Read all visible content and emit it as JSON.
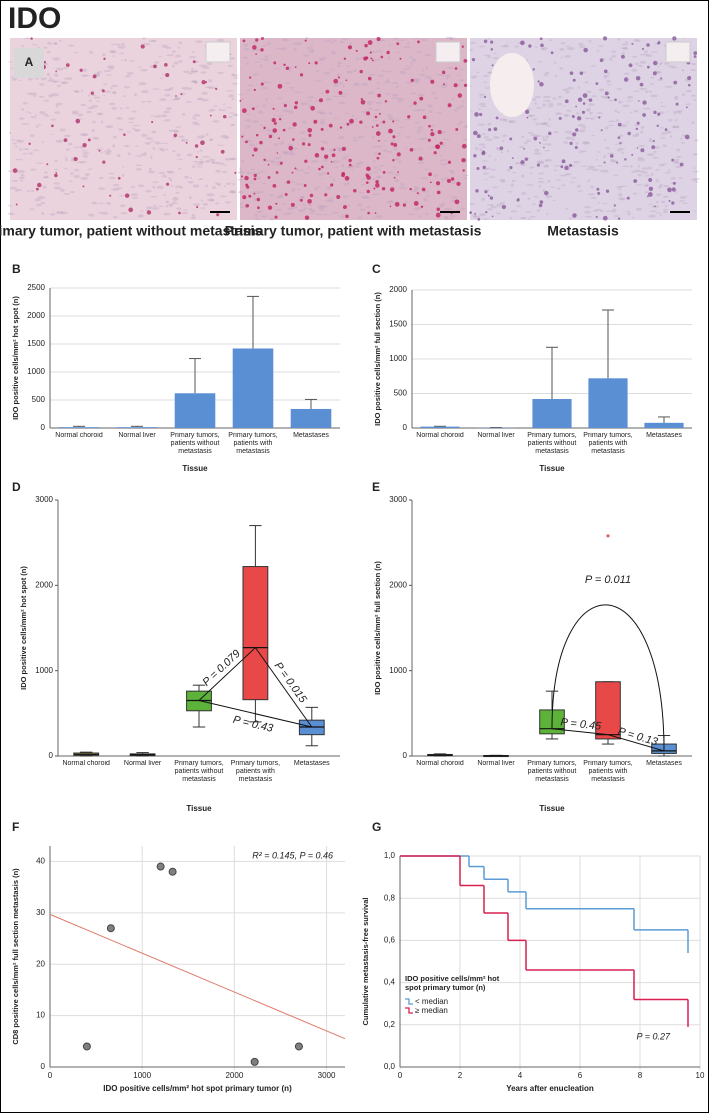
{
  "title": "IDO",
  "panel_a": {
    "label": "A",
    "captions": [
      "Primary tumor, patient without metastasis",
      "Primary tumor, patient with metastasis",
      "Metastasis"
    ]
  },
  "chart_data": [
    {
      "panel": "B",
      "type": "bar",
      "y_label": "IDO positive cells/mm² hot spot (n)",
      "x_label": "Tissue",
      "categories": [
        "Normal choroid",
        "Normal liver",
        "Primary tumors, patients without metastasis",
        "Primary tumors, patients with metastasis",
        "Metastases"
      ],
      "values": [
        15,
        15,
        620,
        1420,
        340
      ],
      "errors": [
        15,
        15,
        620,
        930,
        170
      ],
      "color": "#5b8fd4",
      "ylim": [
        0,
        2500
      ],
      "yticks": [
        0,
        500,
        1000,
        1500,
        2000,
        2500
      ],
      "grid": true
    },
    {
      "panel": "C",
      "type": "bar",
      "y_label": "IDO positive cells/mm² full section (n)",
      "x_label": "Tissue",
      "categories": [
        "Normal choroid",
        "Normal liver",
        "Primary tumors, patients without metastasis",
        "Primary tumors, patients with metastasis",
        "Metastases"
      ],
      "values": [
        20,
        5,
        420,
        720,
        75
      ],
      "errors": [
        5,
        2,
        750,
        990,
        85
      ],
      "color": "#5b8fd4",
      "ylim": [
        0,
        2000
      ],
      "yticks": [
        0,
        500,
        1000,
        1500,
        2000
      ],
      "grid": true
    },
    {
      "panel": "D",
      "type": "box",
      "y_label": "IDO positive cells/mm² hot spot (n)",
      "x_label": "Tissue",
      "categories": [
        "Normal choroid",
        "Normal liver",
        "Primary tumors, patients without metastasis",
        "Primary tumors, patients with metastasis",
        "Metastases"
      ],
      "boxes": [
        {
          "min": 0,
          "q1": 10,
          "median": 20,
          "q3": 35,
          "max": 45,
          "color": "#e8e04a"
        },
        {
          "min": 0,
          "q1": 5,
          "median": 15,
          "q3": 25,
          "max": 40,
          "color": "#9b59b6"
        },
        {
          "min": 340,
          "q1": 530,
          "median": 650,
          "q3": 760,
          "max": 830,
          "color": "#5db33a"
        },
        {
          "min": 400,
          "q1": 660,
          "median": 1270,
          "q3": 2220,
          "max": 2700,
          "color": "#e84848"
        },
        {
          "min": 120,
          "q1": 250,
          "median": 340,
          "q3": 420,
          "max": 570,
          "color": "#5b8fd4"
        }
      ],
      "annotations": [
        "P = 0.079",
        "P = 0.015",
        "P = 0.43"
      ],
      "ylim": [
        0,
        3000
      ],
      "yticks": [
        0,
        1000,
        2000,
        3000
      ]
    },
    {
      "panel": "E",
      "type": "box",
      "y_label": "IDO positive cells/mm² full section (n)",
      "x_label": "Tissue",
      "categories": [
        "Normal choroid",
        "Normal liver",
        "Primary tumors, patients without metastasis",
        "Primary tumors, patients with metastasis",
        "Metastases"
      ],
      "boxes": [
        {
          "min": 0,
          "q1": 5,
          "median": 10,
          "q3": 18,
          "max": 25,
          "color": "#e8e04a"
        },
        {
          "min": 0,
          "q1": 1,
          "median": 3,
          "q3": 5,
          "max": 8,
          "color": "#9b59b6"
        },
        {
          "min": 200,
          "q1": 260,
          "median": 320,
          "q3": 540,
          "max": 760,
          "color": "#5db33a"
        },
        {
          "min": 140,
          "q1": 200,
          "median": 250,
          "q3": 870,
          "max": 870,
          "color": "#e84848",
          "outliers": [
            2580
          ]
        },
        {
          "min": 0,
          "q1": 30,
          "median": 60,
          "q3": 140,
          "max": 240,
          "color": "#5b8fd4"
        }
      ],
      "annotations": [
        "P = 0.011",
        "P = 0.45",
        "P = 0.13"
      ],
      "ylim": [
        0,
        3000
      ],
      "yticks": [
        0,
        1000,
        2000,
        3000
      ]
    },
    {
      "panel": "F",
      "type": "scatter",
      "y_label": "CD8 positive cells/mm² full section metastasis (n)",
      "x_label": "IDO positive cells/mm² hot spot primary tumor (n)",
      "x": [
        400,
        660,
        1200,
        1330,
        2220,
        2700
      ],
      "values": [
        4,
        27,
        39,
        38,
        1,
        4
      ],
      "color": "#808080",
      "fit_line": {
        "intercept": 29.7,
        "slope": -0.00756,
        "color": "#e07a6a"
      },
      "annotation": "R² = 0.145, P = 0.46",
      "xlim": [
        0,
        3200
      ],
      "xticks": [
        0,
        1000,
        2000,
        3000
      ],
      "ylim": [
        0,
        43
      ],
      "yticks": [
        0,
        10,
        20,
        30,
        40
      ],
      "grid": true
    },
    {
      "panel": "G",
      "type": "step",
      "y_label": "Cumulative metastasis-free survival",
      "x_label": "Years after enucleation",
      "legend_title": "IDO positive cells/mm² hot spot primary tumor (n)",
      "series": [
        {
          "name": "< median",
          "color": "#5b9bd5",
          "x": [
            0,
            2.3,
            2.8,
            3.6,
            4.2,
            7.8,
            9.6
          ],
          "values": [
            1,
            0.95,
            0.89,
            0.83,
            0.75,
            0.65,
            0.54
          ]
        },
        {
          "name": "≥ median",
          "color": "#d92050",
          "x": [
            0,
            2,
            2.8,
            3.6,
            4.2,
            7.8,
            9.6
          ],
          "values": [
            1,
            0.86,
            0.73,
            0.6,
            0.46,
            0.32,
            0.19
          ]
        }
      ],
      "annotation": "P = 0.27",
      "xlim": [
        0,
        10
      ],
      "xticks": [
        0,
        2,
        4,
        6,
        8,
        10
      ],
      "ylim": [
        0,
        1
      ],
      "yticks": [
        {
          "value": 0,
          "label": "0,0"
        },
        {
          "value": 0.2,
          "label": "0,2"
        },
        {
          "value": 0.4,
          "label": "0,4"
        },
        {
          "value": 0.6,
          "label": "0,6"
        },
        {
          "value": 0.8,
          "label": "0,8"
        },
        {
          "value": 1,
          "label": "1,0"
        }
      ],
      "grid": true
    }
  ]
}
